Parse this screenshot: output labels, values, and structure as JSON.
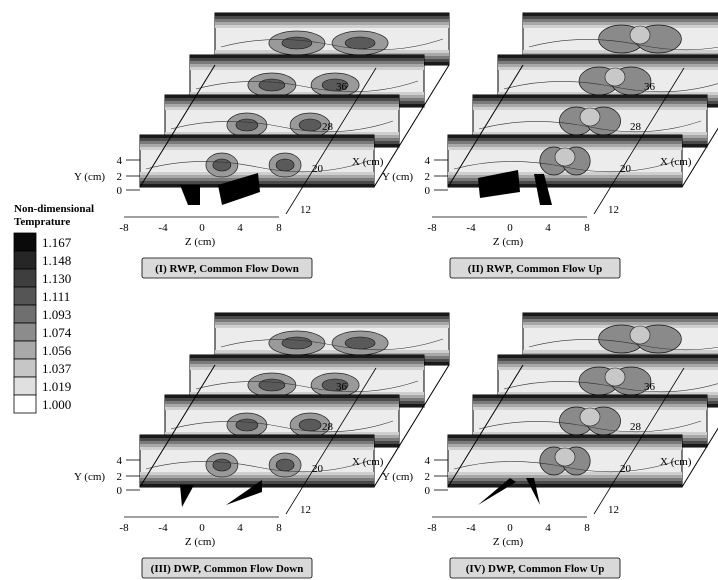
{
  "legend": {
    "title_line1": "Non-dimensional",
    "title_line2": "Temprature",
    "levels": [
      {
        "label": "1.167",
        "color": "#0a0a0a"
      },
      {
        "label": "1.148",
        "color": "#262626"
      },
      {
        "label": "1.130",
        "color": "#3e3e3e"
      },
      {
        "label": "1.111",
        "color": "#555555"
      },
      {
        "label": "1.093",
        "color": "#6f6f6f"
      },
      {
        "label": "1.074",
        "color": "#8c8c8c"
      },
      {
        "label": "1.056",
        "color": "#a9a9a9"
      },
      {
        "label": "1.037",
        "color": "#c6c6c6"
      },
      {
        "label": "1.019",
        "color": "#e0e0e0"
      },
      {
        "label": "1.000",
        "color": "#ffffff"
      }
    ]
  },
  "axes": {
    "y_title": "Y (cm)",
    "x_title": "X (cm)",
    "z_title": "Z (cm)",
    "y_ticks": [
      "4",
      "2",
      "0"
    ],
    "z_ticks": [
      "-8",
      "-4",
      "0",
      "4",
      "8"
    ],
    "x_ticks": [
      "12",
      "20",
      "28",
      "36"
    ]
  },
  "panels": [
    {
      "caption": "(I) RWP, Common Flow Down",
      "nozzle": "rect",
      "flow": "down"
    },
    {
      "caption": "(II) RWP, Common Flow Up",
      "nozzle": "rect",
      "flow": "up"
    },
    {
      "caption": "(III) DWP, Common Flow Down",
      "nozzle": "tri",
      "flow": "down"
    },
    {
      "caption": "(IV) DWP, Common Flow Up",
      "nozzle": "tri",
      "flow": "up"
    }
  ]
}
